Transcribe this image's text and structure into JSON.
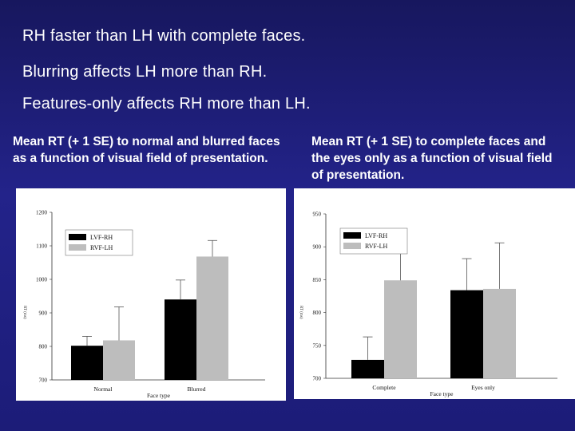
{
  "slide": {
    "bullets": [
      "RH faster than LH with complete faces.",
      "Blurring affects LH more than RH.",
      "Features-only affects  RH more than LH."
    ],
    "captions": [
      "Mean RT (+ 1 SE) to normal and blurred faces as a function of visual field of presentation.",
      "Mean RT (+ 1 SE) to complete faces and the eyes only as a function of visual field of presentation."
    ]
  },
  "colors": {
    "background": "#1f1f7a",
    "lvf_rh": "#000000",
    "rvf_lh": "#bdbdbd"
  },
  "chart_data": [
    {
      "type": "bar",
      "title": "",
      "xlabel": "Face type",
      "ylabel": "RT (ms)",
      "ylim": [
        700,
        1200
      ],
      "yticks": [
        700,
        800,
        900,
        1000,
        1100,
        1200
      ],
      "categories": [
        "Normal",
        "Blurred"
      ],
      "series": [
        {
          "name": "LVF-RH",
          "values": [
            802,
            940
          ],
          "se": [
            28,
            58
          ]
        },
        {
          "name": "RVF-LH",
          "values": [
            818,
            1068
          ],
          "se": [
            100,
            48
          ]
        }
      ],
      "legend": "top-left",
      "grid": false
    },
    {
      "type": "bar",
      "title": "",
      "xlabel": "Face type",
      "ylabel": "RT (ms)",
      "ylim": [
        700,
        950
      ],
      "yticks": [
        700,
        750,
        800,
        850,
        900,
        950
      ],
      "categories": [
        "Complete",
        "Eyes only"
      ],
      "series": [
        {
          "name": "LVF-RH",
          "values": [
            728,
            834
          ],
          "se": [
            35,
            48
          ]
        },
        {
          "name": "RVF-LH",
          "values": [
            849,
            836
          ],
          "se": [
            70,
            70
          ]
        }
      ],
      "legend": "top-left",
      "grid": false
    }
  ]
}
